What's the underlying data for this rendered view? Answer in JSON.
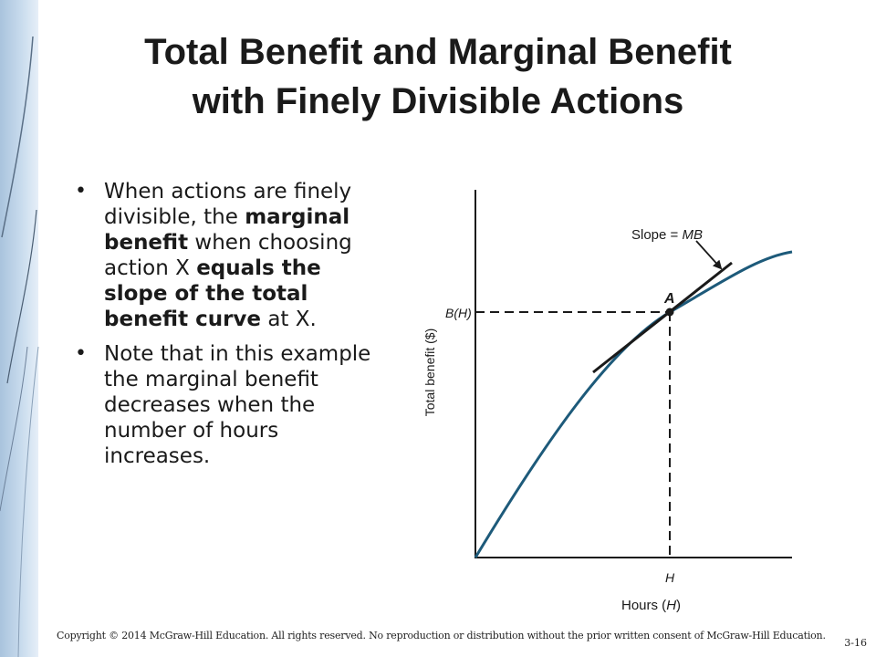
{
  "slide": {
    "title_line1": "Total Benefit and Marginal Benefit",
    "title_line2": "with Finely Divisible Actions"
  },
  "bullets": [
    {
      "t1": "When actions are finely divisible, the ",
      "b1": "marginal benefit",
      "t2": " when choosing action X ",
      "b2": "equals the slope of the total benefit curve",
      "t3": " at X."
    },
    {
      "t1": "Note that in this example the marginal benefit decreases when the number of hours increases."
    }
  ],
  "chart": {
    "y_axis_label": "Total benefit ($)",
    "x_axis_label_prefix": "Hours (",
    "x_axis_label_var": "H",
    "x_axis_label_suffix": ")",
    "x_tick_label": "H",
    "y_tick_label": "B(H)",
    "point_label": "A",
    "slope_label_prefix": "Slope = ",
    "slope_label_var": "MB",
    "curve_color": "#1d5a7a",
    "tangent_color": "#1a1a1a"
  },
  "footer": {
    "copyright": "Copyright © 2014 McGraw-Hill Education. All rights reserved. No reproduction or distribution without the prior written consent of McGraw-Hill Education.",
    "page_number": "3-16"
  }
}
